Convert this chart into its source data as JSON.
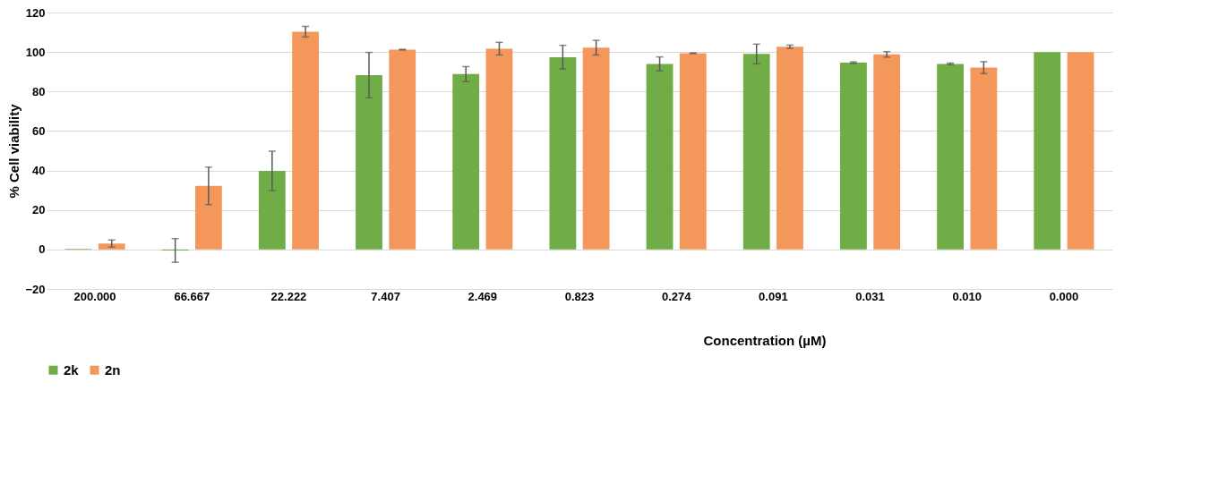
{
  "chart_data": {
    "type": "bar",
    "xlabel": "Concentration (µM)",
    "ylabel": "% Cell viability",
    "categories": [
      "200.000",
      "66.667",
      "22.222",
      "7.407",
      "2.469",
      "0.823",
      "0.274",
      "0.091",
      "0.031",
      "0.010",
      "0.000"
    ],
    "series": [
      {
        "name": "2k",
        "color": "#70ad47",
        "values": [
          0.3,
          -0.5,
          39.8,
          88.3,
          88.8,
          97.4,
          94.0,
          99.0,
          94.6,
          94.0,
          100
        ],
        "errors": [
          null,
          6,
          10,
          11.5,
          3.8,
          6,
          3.5,
          5,
          0.4,
          0.4,
          null
        ]
      },
      {
        "name": "2n",
        "color": "#f4975a",
        "values": [
          3.0,
          32.2,
          110.3,
          101.2,
          101.7,
          102.2,
          99.4,
          102.7,
          98.8,
          92.1,
          100
        ],
        "errors": [
          1.8,
          9.5,
          2.7,
          0.2,
          3.2,
          3.7,
          0.2,
          0.8,
          1.4,
          3.0,
          null
        ]
      }
    ],
    "ylim": [
      -20,
      120
    ],
    "yticks": [
      -20,
      0,
      20,
      40,
      60,
      80,
      100,
      120
    ],
    "grid": "y",
    "legend": "bottom"
  }
}
